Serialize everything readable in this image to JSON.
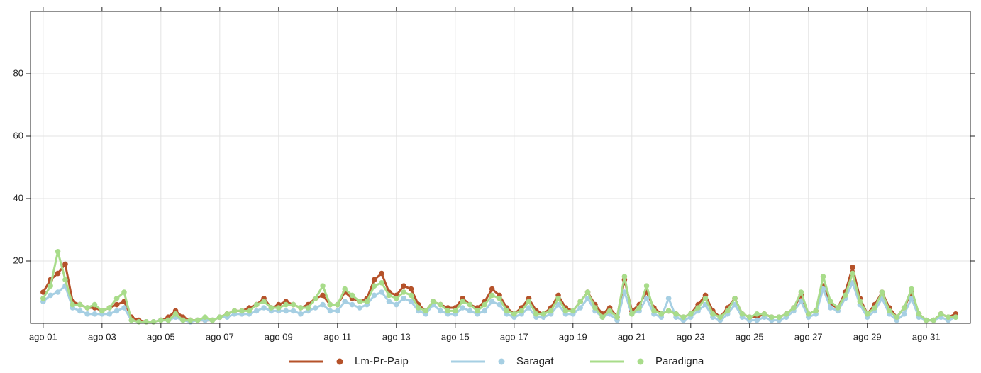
{
  "chart_data": {
    "type": "line",
    "x": [
      1,
      1.25,
      1.5,
      1.75,
      2,
      2.25,
      2.5,
      2.75,
      3,
      3.25,
      3.5,
      3.75,
      4,
      4.25,
      4.5,
      4.75,
      5,
      5.25,
      5.5,
      5.75,
      6,
      6.25,
      6.5,
      6.75,
      7,
      7.25,
      7.5,
      7.75,
      8,
      8.25,
      8.5,
      8.75,
      9,
      9.25,
      9.5,
      9.75,
      10,
      10.25,
      10.5,
      10.75,
      11,
      11.25,
      11.5,
      11.75,
      12,
      12.25,
      12.5,
      12.75,
      13,
      13.25,
      13.5,
      13.75,
      14,
      14.25,
      14.5,
      14.75,
      15,
      15.25,
      15.5,
      15.75,
      16,
      16.25,
      16.5,
      16.75,
      17,
      17.25,
      17.5,
      17.75,
      18,
      18.25,
      18.5,
      18.75,
      19,
      19.25,
      19.5,
      19.75,
      20,
      20.25,
      20.5,
      20.75,
      21,
      21.25,
      21.5,
      21.75,
      22,
      22.25,
      22.5,
      22.75,
      23,
      23.25,
      23.5,
      23.75,
      24,
      24.25,
      24.5,
      24.75,
      25,
      25.25,
      25.5,
      25.75,
      26,
      26.25,
      26.5,
      26.75,
      27,
      27.25,
      27.5,
      27.75,
      28,
      28.25,
      28.5,
      28.75,
      29,
      29.25,
      29.5,
      29.75,
      30,
      30.25,
      30.5,
      30.75,
      31,
      31.25,
      31.5,
      31.75,
      32
    ],
    "series": [
      {
        "name": "Lm-Pr-Paip",
        "color": "#b5522a",
        "values": [
          10,
          14,
          16,
          19,
          7,
          6,
          5,
          5,
          4,
          5,
          6,
          7,
          2,
          1,
          0.5,
          0.5,
          1,
          2,
          4,
          2,
          1,
          1,
          1,
          1,
          2,
          3,
          4,
          4,
          5,
          6,
          8,
          5,
          6,
          7,
          6,
          5,
          6,
          8,
          9,
          6,
          6,
          10,
          8,
          7,
          8,
          14,
          16,
          10,
          9,
          12,
          11,
          6,
          4,
          7,
          6,
          5,
          5,
          8,
          6,
          5,
          7,
          11,
          9,
          5,
          3,
          5,
          8,
          4,
          3,
          5,
          9,
          5,
          4,
          7,
          10,
          6,
          3,
          5,
          2,
          14,
          4,
          6,
          10,
          5,
          3,
          4,
          3,
          2,
          3,
          6,
          9,
          4,
          2,
          5,
          8,
          3,
          2,
          2,
          3,
          2,
          2,
          3,
          5,
          9,
          3,
          4,
          12,
          6,
          5,
          10,
          18,
          8,
          3,
          6,
          10,
          5,
          2,
          5,
          10,
          3,
          1,
          1,
          3,
          2,
          3
        ]
      },
      {
        "name": "Saragat",
        "color": "#a6cfe3",
        "values": [
          7,
          9,
          10,
          12,
          5,
          4,
          3,
          3,
          3,
          3,
          4,
          5,
          1,
          0.5,
          0.5,
          0.5,
          1,
          1,
          2,
          1,
          0.5,
          1,
          1,
          1,
          2,
          2,
          3,
          3,
          3,
          4,
          5,
          4,
          4,
          4,
          4,
          3,
          4,
          5,
          6,
          4,
          4,
          7,
          6,
          5,
          6,
          9,
          10,
          7,
          6,
          8,
          7,
          4,
          3,
          6,
          4,
          3,
          3,
          5,
          4,
          3,
          4,
          7,
          6,
          3,
          2,
          3,
          5,
          2,
          2,
          3,
          6,
          3,
          3,
          5,
          8,
          4,
          2,
          3,
          1,
          10,
          3,
          4,
          8,
          3,
          2,
          8,
          2,
          1,
          2,
          4,
          6,
          2,
          1,
          3,
          6,
          2,
          1,
          1,
          2,
          1,
          1,
          2,
          4,
          7,
          2,
          3,
          11,
          5,
          4,
          8,
          13,
          6,
          2,
          4,
          8,
          3,
          1,
          3,
          8,
          2,
          1,
          1,
          2,
          1,
          2
        ]
      },
      {
        "name": "Paradigna",
        "color": "#a8dc8a",
        "values": [
          8,
          12,
          23,
          14,
          6,
          6,
          5,
          6,
          4,
          5,
          8,
          10,
          1,
          0.5,
          0.5,
          0.5,
          1,
          1,
          3,
          1,
          1,
          1,
          2,
          1,
          2,
          3,
          4,
          4,
          4,
          6,
          7,
          5,
          5,
          6,
          6,
          5,
          5,
          8,
          12,
          6,
          6,
          11,
          9,
          7,
          7,
          12,
          13,
          9,
          8,
          10,
          9,
          5,
          4,
          7,
          6,
          4,
          4,
          7,
          6,
          4,
          6,
          9,
          8,
          4,
          3,
          4,
          7,
          3,
          3,
          4,
          8,
          4,
          4,
          7,
          10,
          5,
          2,
          4,
          2,
          15,
          3,
          5,
          12,
          4,
          3,
          4,
          3,
          2,
          3,
          5,
          8,
          3,
          2,
          4,
          8,
          3,
          2,
          3,
          3,
          2,
          2,
          3,
          5,
          10,
          3,
          4,
          15,
          7,
          5,
          9,
          16,
          7,
          3,
          5,
          10,
          4,
          2,
          5,
          11,
          3,
          1,
          1,
          3,
          2,
          2
        ]
      }
    ],
    "xlim": [
      0.57,
      32.5
    ],
    "xticks": [
      {
        "value": 1,
        "label": "ago 01"
      },
      {
        "value": 3,
        "label": "ago 03"
      },
      {
        "value": 5,
        "label": "ago 05"
      },
      {
        "value": 7,
        "label": "ago 07"
      },
      {
        "value": 9,
        "label": "ago 09"
      },
      {
        "value": 11,
        "label": "ago 11"
      },
      {
        "value": 13,
        "label": "ago 13"
      },
      {
        "value": 15,
        "label": "ago 15"
      },
      {
        "value": 17,
        "label": "ago 17"
      },
      {
        "value": 19,
        "label": "ago 19"
      },
      {
        "value": 21,
        "label": "ago 21"
      },
      {
        "value": 23,
        "label": "ago 23"
      },
      {
        "value": 25,
        "label": "ago 25"
      },
      {
        "value": 27,
        "label": "ago 27"
      },
      {
        "value": 29,
        "label": "ago 29"
      },
      {
        "value": 31,
        "label": "ago 31"
      }
    ],
    "ylim": [
      0,
      100
    ],
    "yticks": [
      20,
      40,
      60,
      80
    ],
    "grid": true
  }
}
